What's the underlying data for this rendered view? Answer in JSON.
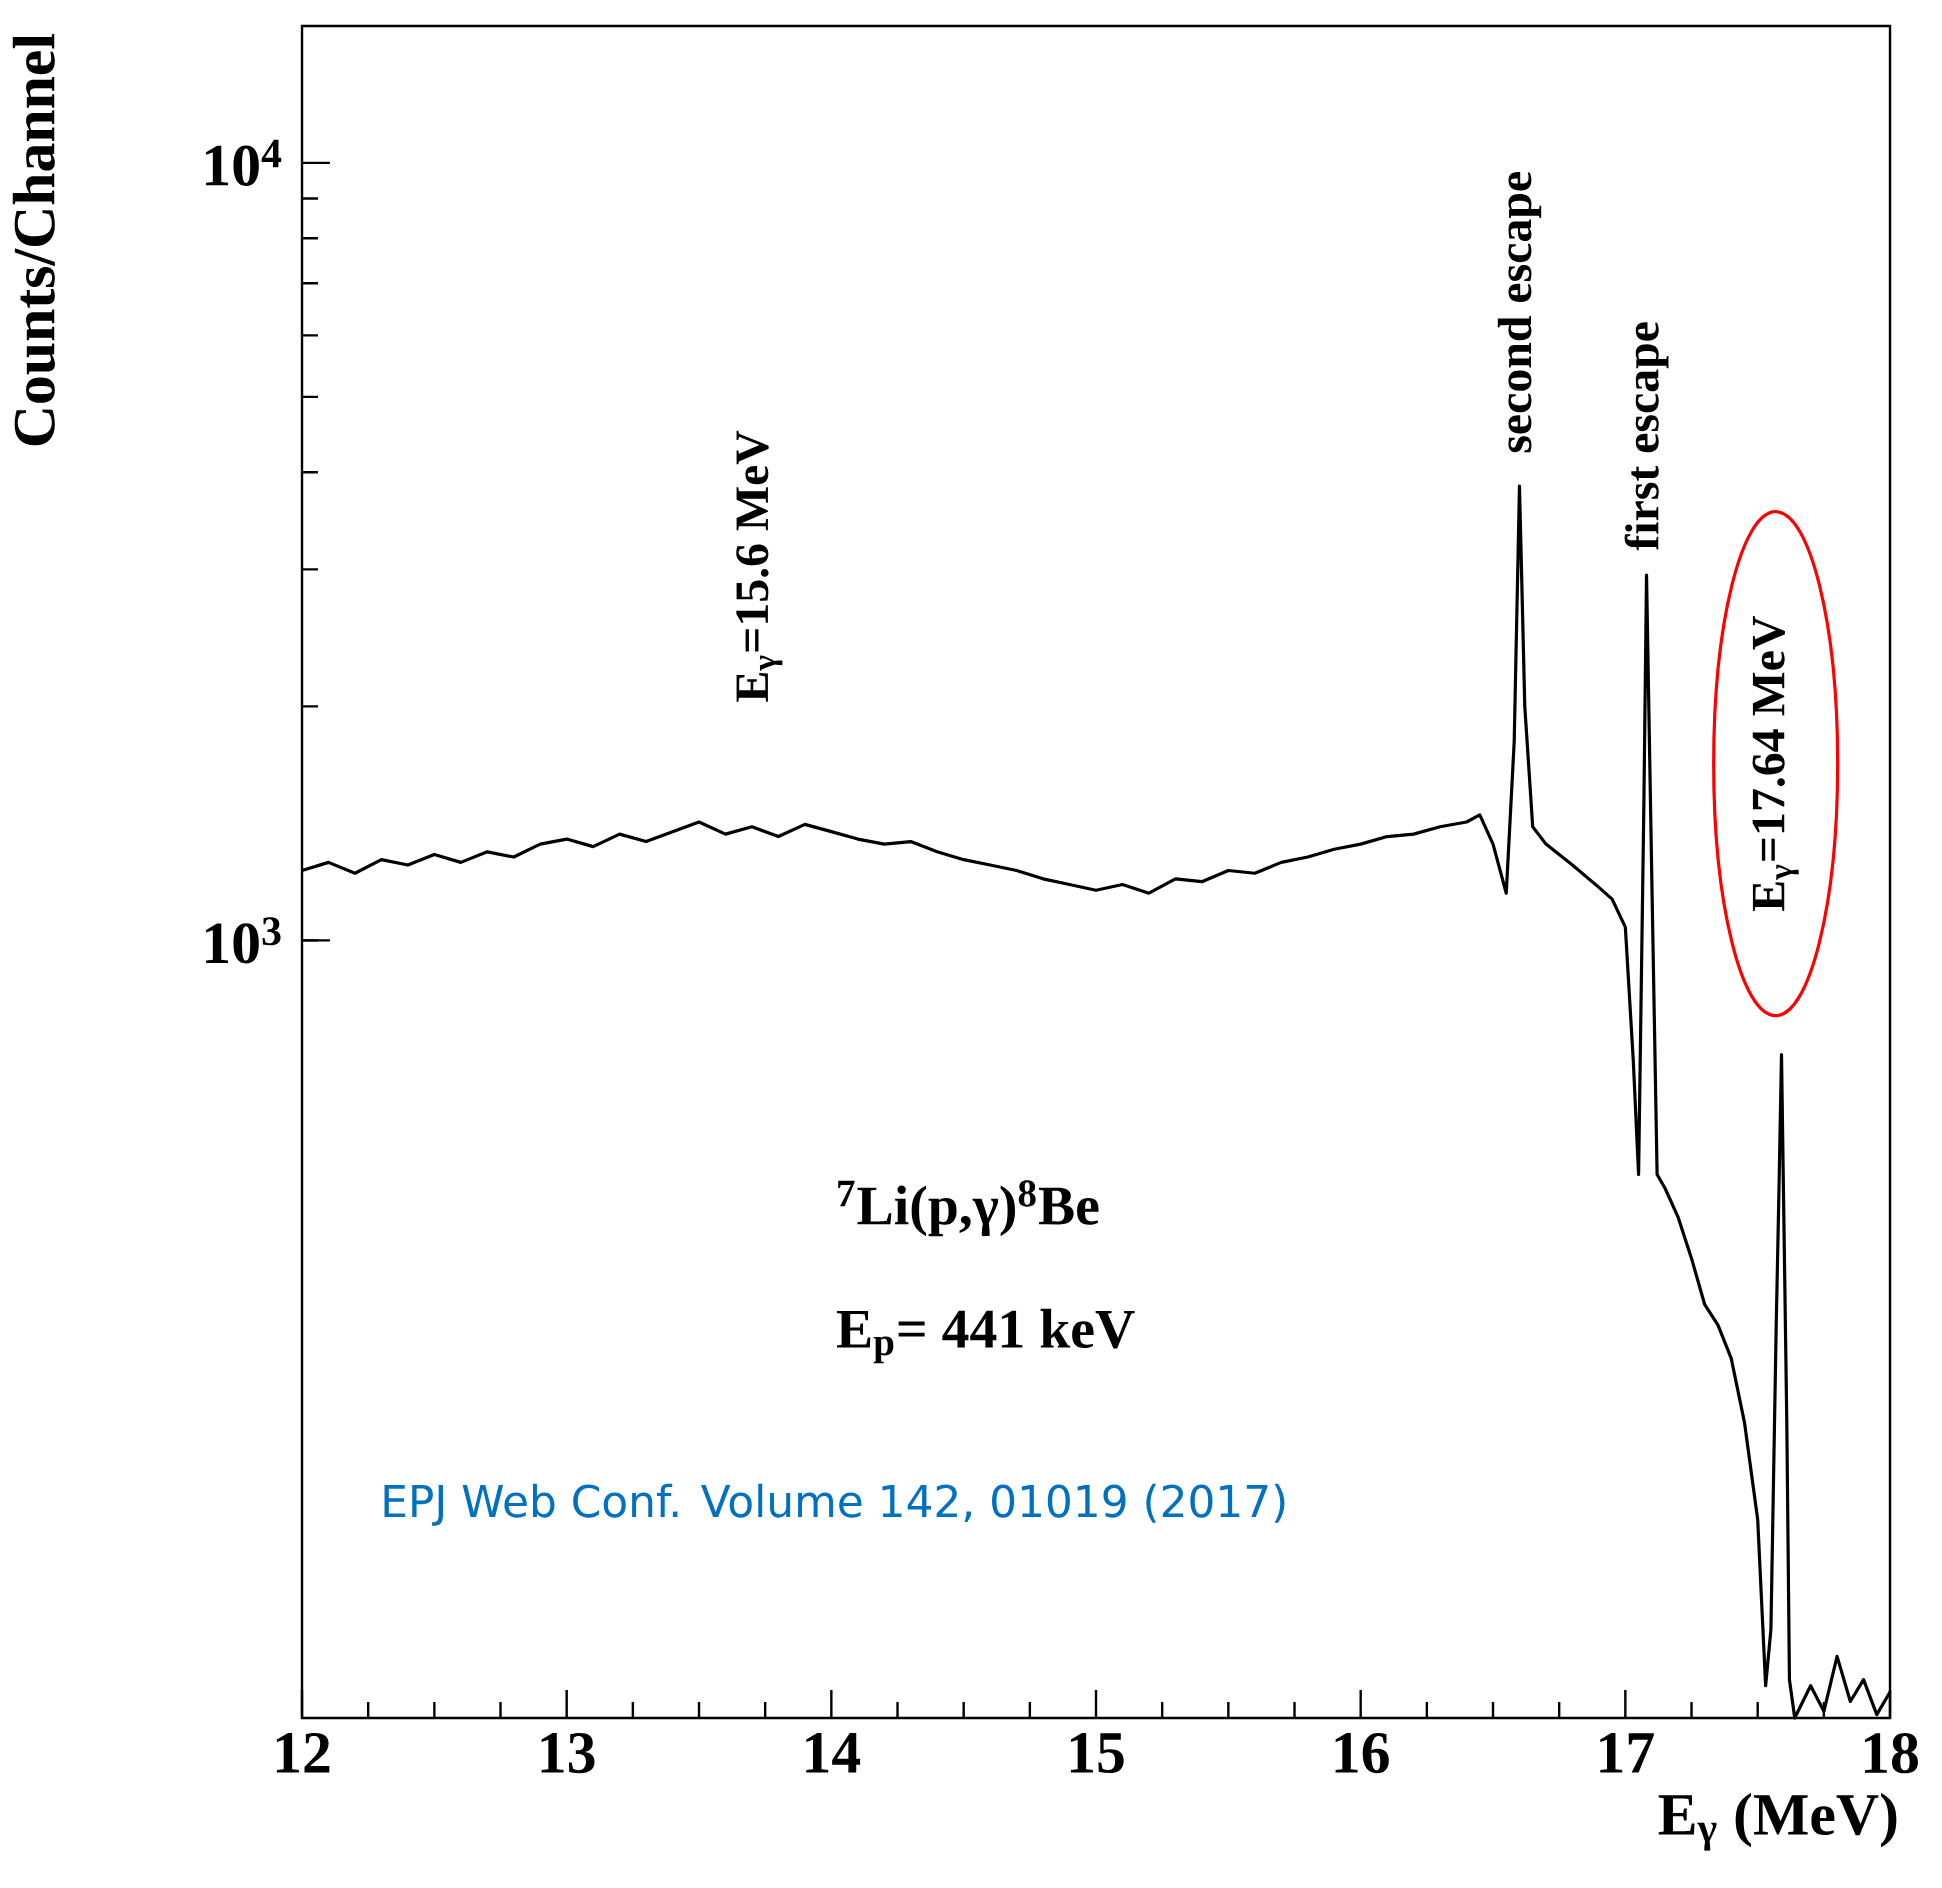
{
  "chart_data": {
    "type": "line",
    "xlabel": "E$_{γ}$ (MeV)",
    "ylabel": "Counts/Channel",
    "log": true,
    "xlim": [
      12,
      18
    ],
    "ylim": [
      100,
      15000
    ],
    "xticks": [
      12,
      13,
      14,
      15,
      16,
      17,
      18
    ],
    "yticks": [
      {
        "value": 1000,
        "label": "10$^{3}$"
      },
      {
        "value": 10000,
        "label": "10$^{4}$"
      }
    ],
    "x": [
      12.0,
      12.1,
      12.2,
      12.3,
      12.4,
      12.5,
      12.6,
      12.7,
      12.8,
      12.9,
      13.0,
      13.1,
      13.2,
      13.3,
      13.4,
      13.5,
      13.6,
      13.7,
      13.8,
      13.9,
      14.0,
      14.1,
      14.2,
      14.3,
      14.4,
      14.5,
      14.6,
      14.7,
      14.8,
      14.9,
      15.0,
      15.1,
      15.2,
      15.3,
      15.4,
      15.5,
      15.6,
      15.7,
      15.8,
      15.9,
      16.0,
      16.1,
      16.2,
      16.3,
      16.4,
      16.45,
      16.5,
      16.55,
      16.58,
      16.6,
      16.62,
      16.65,
      16.7,
      16.8,
      16.9,
      16.95,
      17.0,
      17.03,
      17.05,
      17.07,
      17.08,
      17.1,
      17.12,
      17.15,
      17.2,
      17.25,
      17.3,
      17.35,
      17.4,
      17.45,
      17.5,
      17.53,
      17.55,
      17.57,
      17.58,
      17.59,
      17.61,
      17.62,
      17.64,
      17.7,
      17.75,
      17.8,
      17.85,
      17.9,
      17.95,
      18.0
    ],
    "series": [
      {
        "color": "#000000",
        "values": [
          1230,
          1260,
          1220,
          1270,
          1250,
          1290,
          1260,
          1300,
          1280,
          1330,
          1350,
          1320,
          1370,
          1340,
          1380,
          1420,
          1370,
          1400,
          1360,
          1410,
          1380,
          1350,
          1330,
          1340,
          1300,
          1270,
          1250,
          1230,
          1200,
          1180,
          1160,
          1180,
          1150,
          1200,
          1190,
          1230,
          1220,
          1260,
          1280,
          1310,
          1330,
          1360,
          1370,
          1400,
          1420,
          1450,
          1330,
          1150,
          1800,
          3840,
          2000,
          1400,
          1330,
          1250,
          1170,
          1130,
          1040,
          700,
          500,
          1500,
          2950,
          1200,
          500,
          480,
          440,
          390,
          340,
          320,
          290,
          240,
          180,
          110,
          130,
          320,
          470,
          713,
          240,
          112,
          100,
          110,
          102,
          120,
          105,
          112,
          101,
          108
        ]
      }
    ],
    "annotations": [
      "E$_{γ}$=15.6 MeV",
      {
        "text": "second escape",
        "x": 16.6,
        "y": 3840
      },
      {
        "text": "first escape",
        "x": 17.08,
        "y": 2950
      },
      "E$_{γ}$=17.64 MeV",
      "$^{7}$Li(p,γ)$^{8}$Be",
      "E$_{p}$= 441 keV",
      "EPJ Web Conf. Volume 142, 01019 (2017)"
    ]
  }
}
